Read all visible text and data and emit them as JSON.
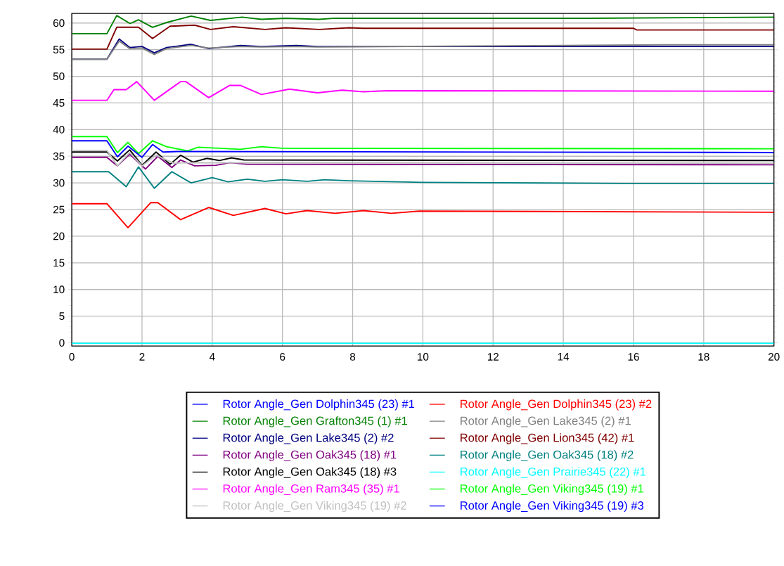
{
  "chart_data": {
    "type": "line",
    "xlim": [
      0,
      20
    ],
    "ylim": [
      -0.6,
      61.8
    ],
    "xticks": [
      0,
      2,
      4,
      6,
      8,
      10,
      12,
      14,
      16,
      18,
      20
    ],
    "yticks": [
      0,
      5,
      10,
      15,
      20,
      25,
      30,
      35,
      40,
      45,
      50,
      55,
      60
    ],
    "grid": true,
    "legend": "bottom",
    "marker": "none",
    "line_style": "solid",
    "series": [
      {
        "name": "Rotor Angle_Gen Dolphin345 (23) #1",
        "color": "#0000ff"
      },
      {
        "name": "Rotor Angle_Gen Grafton345 (1) #1",
        "color": "#008000",
        "x": [
          0,
          1.0,
          1.28,
          1.66,
          1.9,
          2.3,
          2.7,
          3.4,
          3.95,
          4.85,
          5.4,
          6.1,
          7.05,
          7.5,
          14.7,
          20
        ],
        "values": [
          58.0,
          58.0,
          61.4,
          59.9,
          60.6,
          59.2,
          60.1,
          61.3,
          60.5,
          61.1,
          60.7,
          60.9,
          60.7,
          60.9,
          60.9,
          61.1
        ]
      },
      {
        "name": "Rotor Angle_Gen Lake345 (2) #2",
        "color": "#000080",
        "x": [
          0,
          1.0,
          1.35,
          1.65,
          2.0,
          2.35,
          2.7,
          3.4,
          3.9,
          4.8,
          5.4,
          6.4,
          7.0,
          20
        ],
        "values": [
          53.2,
          53.2,
          57.0,
          55.4,
          55.6,
          54.4,
          55.4,
          56.0,
          55.2,
          55.8,
          55.6,
          55.8,
          55.6,
          55.6
        ]
      },
      {
        "name": "Rotor Angle_Gen Oak345 (18) #1",
        "color": "#800080",
        "x": [
          0,
          1.0,
          1.3,
          1.65,
          2.1,
          2.45,
          2.85,
          3.1,
          3.5,
          4.1,
          4.5,
          5.0,
          20
        ],
        "values": [
          34.8,
          34.8,
          33.2,
          35.4,
          32.6,
          35.0,
          32.9,
          34.3,
          33.2,
          33.3,
          33.8,
          33.5,
          33.4
        ]
      },
      {
        "name": "Rotor Angle_Gen Oak345 (18) #3",
        "color": "#000000",
        "x": [
          0,
          1.0,
          1.3,
          1.65,
          2.0,
          2.4,
          2.8,
          3.1,
          3.45,
          3.85,
          4.2,
          4.55,
          4.9,
          20
        ],
        "values": [
          35.8,
          35.8,
          34.1,
          36.2,
          33.3,
          35.8,
          33.5,
          35.2,
          33.9,
          34.6,
          34.2,
          34.7,
          34.3,
          34.2
        ]
      },
      {
        "name": "Rotor Angle_Gen Ram345 (35) #1",
        "color": "#ff00ff",
        "x": [
          0,
          1.0,
          1.2,
          1.55,
          1.85,
          2.35,
          3.1,
          3.25,
          3.9,
          4.5,
          4.8,
          5.4,
          6.2,
          7.0,
          7.7,
          8.3,
          9.0,
          20
        ],
        "values": [
          45.5,
          45.5,
          47.5,
          47.5,
          49.0,
          45.5,
          49.0,
          49.0,
          46.0,
          48.3,
          48.3,
          46.6,
          47.6,
          46.9,
          47.4,
          47.1,
          47.3,
          47.2
        ]
      },
      {
        "name": "Rotor Angle_Gen Viking345 (19) #2",
        "color": "#c0c0c0",
        "x": [
          0,
          1.0,
          1.3,
          1.65,
          2.0,
          2.4,
          2.9,
          3.3,
          20
        ],
        "values": [
          36.1,
          36.1,
          33.2,
          35.7,
          33.2,
          35.2,
          33.7,
          33.8,
          33.7
        ]
      },
      {
        "name": "Rotor Angle_Gen Dolphin345 (23) #2",
        "color": "#ff0000",
        "x": [
          0,
          1.0,
          1.6,
          2.25,
          2.45,
          3.1,
          3.9,
          4.6,
          5.5,
          6.1,
          6.7,
          7.5,
          8.3,
          9.1,
          9.9,
          20
        ],
        "values": [
          26.1,
          26.1,
          21.6,
          26.3,
          26.3,
          23.1,
          25.4,
          23.9,
          25.2,
          24.2,
          24.8,
          24.3,
          24.8,
          24.3,
          24.7,
          24.5
        ]
      },
      {
        "name": "Rotor Angle_Gen Lake345 (2) #1",
        "color": "#808080",
        "x": [
          0,
          1.0,
          1.35,
          1.65,
          2.0,
          2.35,
          2.7,
          3.4,
          3.9,
          4.8,
          5.4,
          6.4,
          7.0,
          16.8,
          20
        ],
        "values": [
          53.2,
          53.2,
          56.6,
          55.2,
          55.3,
          54.1,
          55.2,
          55.8,
          55.3,
          55.6,
          55.5,
          55.6,
          55.5,
          55.9,
          55.9
        ]
      },
      {
        "name": "Rotor Angle_Gen Lion345 (42) #1",
        "color": "#800000",
        "x": [
          0,
          1.0,
          1.28,
          1.9,
          2.3,
          2.8,
          3.5,
          3.95,
          4.6,
          5.5,
          6.1,
          7.05,
          7.9,
          8.3,
          16.0,
          16.1,
          20
        ],
        "values": [
          55.1,
          55.1,
          59.2,
          59.2,
          57.1,
          59.4,
          59.6,
          58.8,
          59.3,
          58.8,
          59.1,
          58.8,
          59.1,
          59.0,
          59.0,
          58.7,
          58.7
        ]
      },
      {
        "name": "Rotor Angle_Gen Oak345 (18) #2",
        "color": "#008080",
        "x": [
          0,
          1.05,
          1.55,
          1.9,
          2.35,
          2.85,
          3.4,
          4.0,
          4.45,
          5.0,
          5.5,
          6.0,
          6.7,
          7.2,
          7.9,
          10.0,
          15.7,
          20
        ],
        "values": [
          32.1,
          32.1,
          29.3,
          33.0,
          29.0,
          32.1,
          30.0,
          31.0,
          30.2,
          30.7,
          30.3,
          30.6,
          30.3,
          30.6,
          30.4,
          30.1,
          29.9,
          29.9
        ]
      },
      {
        "name": "Rotor Angle_Gen Prairie345 (22) #1",
        "color": "#00ffff",
        "x": [
          0,
          20
        ],
        "values": [
          -0.1,
          -0.1
        ]
      },
      {
        "name": "Rotor Angle_Gen Viking345 (19) #1",
        "color": "#00ff00",
        "x": [
          0,
          1.0,
          1.3,
          1.6,
          1.9,
          2.3,
          2.7,
          3.3,
          3.6,
          4.8,
          5.4,
          6.0,
          20
        ],
        "values": [
          38.7,
          38.7,
          35.7,
          37.6,
          35.5,
          37.9,
          36.8,
          36.0,
          36.7,
          36.3,
          36.8,
          36.5,
          36.4
        ]
      },
      {
        "name": "Rotor Angle_Gen Viking345 (19) #3",
        "color": "#0000ff",
        "x": [
          0,
          1.0,
          1.3,
          1.6,
          2.0,
          2.3,
          2.6,
          3.0,
          20
        ],
        "values": [
          37.9,
          37.9,
          34.9,
          36.9,
          34.8,
          37.2,
          35.8,
          35.9,
          35.7
        ]
      }
    ]
  }
}
